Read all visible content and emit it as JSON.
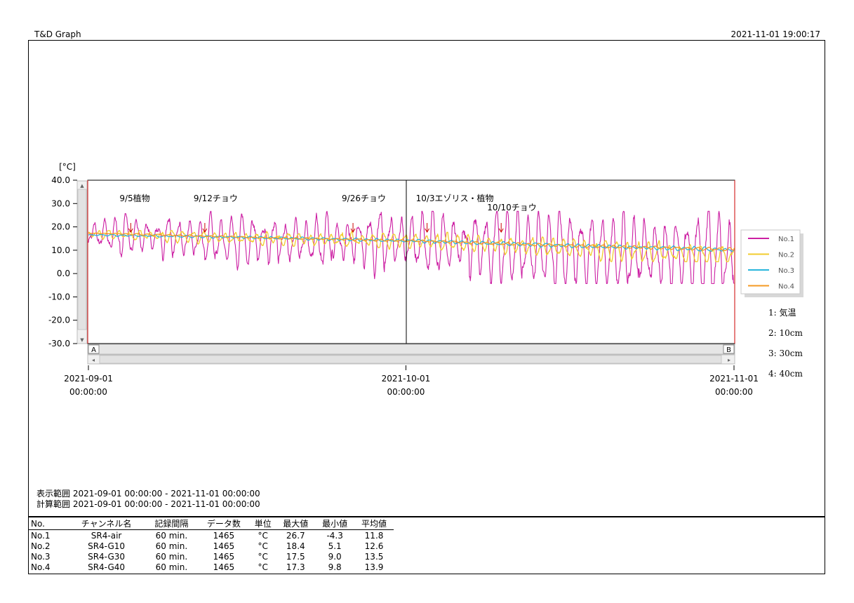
{
  "app_title": "T&D Graph",
  "timestamp": "2021-11-01 19:00:17",
  "chart_data": {
    "type": "line",
    "ylabel": "[°C]",
    "ylim": [
      -30,
      40
    ],
    "yticks": [
      "40.0",
      "30.0",
      "20.0",
      "10.0",
      "0.0",
      "-10.0",
      "-20.0",
      "-30.0"
    ],
    "xlim": [
      "2021-09-01 00:00:00",
      "2021-11-01 00:00:00"
    ],
    "xticks": [
      {
        "date": "2021-09-01",
        "time": "00:00:00"
      },
      {
        "date": "2021-10-01",
        "time": "00:00:00"
      },
      {
        "date": "2021-11-01",
        "time": "00:00:00"
      }
    ],
    "cursor_a": "A",
    "cursor_b": "B",
    "annotations": [
      {
        "text": "9/5植物",
        "date": "2021-09-05"
      },
      {
        "text": "9/12チョウ",
        "date": "2021-09-12"
      },
      {
        "text": "9/26チョウ",
        "date": "2021-09-26"
      },
      {
        "text": "10/3エゾリス・植物",
        "date": "2021-10-03"
      },
      {
        "text": "10/10チョウ",
        "date": "2021-10-10"
      }
    ],
    "series": [
      {
        "name": "No.1",
        "color": "#cc1fa3",
        "min": -4.3,
        "max": 26.7,
        "mean": 11.8,
        "amp_start": 6,
        "amp_end": 14,
        "trend": [
          [
            1,
            17
          ],
          [
            15,
            14
          ],
          [
            31,
            14
          ],
          [
            45,
            10
          ],
          [
            62,
            7
          ]
        ]
      },
      {
        "name": "No.2",
        "color": "#f2cc2e",
        "min": 5.1,
        "max": 18.4,
        "mean": 12.6,
        "amp_start": 1.5,
        "amp_end": 3.5,
        "trend": [
          [
            1,
            17
          ],
          [
            15,
            15
          ],
          [
            31,
            14
          ],
          [
            45,
            11
          ],
          [
            62,
            7
          ]
        ]
      },
      {
        "name": "No.3",
        "color": "#29b6dc",
        "min": 9.0,
        "max": 17.5,
        "mean": 13.5,
        "amp_start": 0.3,
        "amp_end": 0.8,
        "trend": [
          [
            1,
            16.5
          ],
          [
            15,
            15.5
          ],
          [
            31,
            14
          ],
          [
            45,
            12
          ],
          [
            62,
            10
          ]
        ]
      },
      {
        "name": "No.4",
        "color": "#f59a23",
        "min": 9.8,
        "max": 17.3,
        "mean": 13.9,
        "amp_start": 0.2,
        "amp_end": 0.5,
        "trend": [
          [
            1,
            17.3
          ],
          [
            15,
            15.5
          ],
          [
            31,
            14
          ],
          [
            45,
            12
          ],
          [
            62,
            10.2
          ]
        ]
      }
    ],
    "channel_notes": [
      "1: 気温",
      "2: 10cm",
      "3: 30cm",
      "4: 40cm"
    ]
  },
  "range": {
    "display": "表示範囲 2021-09-01 00:00:00 - 2021-11-01 00:00:00",
    "calc": "計算範囲 2021-09-01 00:00:00 - 2021-11-01 00:00:00"
  },
  "table": {
    "headers": [
      "No.",
      "チャンネル名",
      "記録間隔",
      "データ数",
      "単位",
      "最大値",
      "最小値",
      "平均値"
    ],
    "rows": [
      [
        "No.1",
        "SR4-air",
        "60 min.",
        "1465",
        "°C",
        "26.7",
        "-4.3",
        "11.8"
      ],
      [
        "No.2",
        "SR4-G10",
        "60 min.",
        "1465",
        "°C",
        "18.4",
        "5.1",
        "12.6"
      ],
      [
        "No.3",
        "SR4-G30",
        "60 min.",
        "1465",
        "°C",
        "17.5",
        "9.0",
        "13.5"
      ],
      [
        "No.4",
        "SR4-G40",
        "60 min.",
        "1465",
        "°C",
        "17.3",
        "9.8",
        "13.9"
      ]
    ]
  }
}
